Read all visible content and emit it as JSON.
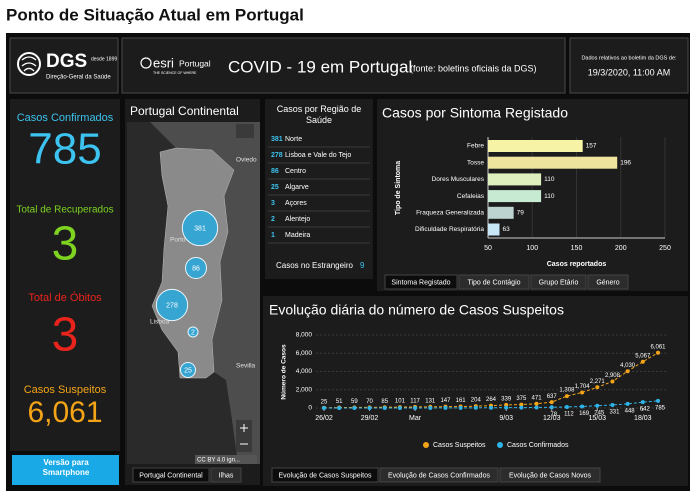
{
  "header": {
    "title": "Ponto de Situação Atual em Portugal"
  },
  "logo": {
    "name": "DGS",
    "since": "desde 1899",
    "subtitle": "Direção-Geral da Saúde"
  },
  "banner": {
    "esri": "esri",
    "esri_region": "Portugal",
    "esri_tagline": "THE SCIENCE OF WHERE",
    "title": "COVID - 19 em Portugal",
    "source": "(fonte: boletins oficiais da DGS)"
  },
  "report_date": {
    "label": "Dados relativos ao boletim da DGS de:",
    "value": "19/3/2020, 11:00 AM"
  },
  "stats": [
    {
      "label": "Casos Confirmados",
      "value": 785,
      "color": "#3cc3ef"
    },
    {
      "label": "Total de Recuperados",
      "value": 3,
      "color": "#7ed321"
    },
    {
      "label": "Total de Óbitos",
      "value": 3,
      "color": "#e8241c"
    },
    {
      "label": "Casos Suspeitos",
      "value": 6061,
      "value_label": "6,061",
      "color": "#f4a417"
    }
  ],
  "smartphone_button": "Versão para Smartphone",
  "map": {
    "title": "Portugal Continental",
    "bubbles": [
      381,
      86,
      278,
      2,
      25
    ],
    "places": [
      "Oviedo",
      "Porto",
      "Lisboa",
      "Sevilla"
    ],
    "attribution": "CC BY 4.0 ign...",
    "tabs": [
      "Portugal Continental",
      "Ilhas"
    ]
  },
  "regions": {
    "title": "Casos por Região de Saúde",
    "rows": [
      {
        "count": 381,
        "name": "Norte"
      },
      {
        "count": 278,
        "name": "Lisboa e Vale do Tejo"
      },
      {
        "count": 86,
        "name": "Centro"
      },
      {
        "count": 25,
        "name": "Algarve"
      },
      {
        "count": 3,
        "name": "Açores"
      },
      {
        "count": 2,
        "name": "Alentejo"
      },
      {
        "count": 1,
        "name": "Madeira"
      }
    ],
    "abroad_label": "Casos no Estrangeiro",
    "abroad_count": 9
  },
  "chart_data": [
    {
      "type": "bar",
      "orientation": "horizontal",
      "title": "Casos por Sintoma Registado",
      "x_label": "Casos reportados",
      "y_label": "Tipo de Sintoma",
      "categories": [
        "Febre",
        "Tosse",
        "Dores Musculares",
        "Cefaleias",
        "Fraqueza Generalizada",
        "Dificuldade Respiratória"
      ],
      "values": [
        157,
        196,
        110,
        110,
        79,
        63
      ],
      "colors": [
        "#f6f3a6",
        "#efe49d",
        "#def0bd",
        "#c6ead2",
        "#bcd3d0",
        "#c7e6f6"
      ],
      "xlim": [
        50,
        250
      ],
      "xticks": [
        50,
        100,
        150,
        200,
        250
      ],
      "tabs": [
        "Sintoma Registado",
        "Tipo de Contágio",
        "Grupo Etário",
        "Género"
      ]
    },
    {
      "type": "line",
      "title": "Evolução diária do número de Casos Suspeitos",
      "y_label": "Número de Casos",
      "categories": [
        "26/02",
        null,
        null,
        "29/02",
        null,
        null,
        "Mar",
        null,
        null,
        null,
        null,
        null,
        "9/03",
        null,
        null,
        "12/03",
        null,
        null,
        "15/03",
        null,
        null,
        "18/03",
        null
      ],
      "series": [
        {
          "name": "Casos Suspeitos",
          "color": "#f4a417",
          "values": [
            25,
            51,
            59,
            70,
            85,
            101,
            117,
            131,
            147,
            161,
            204,
            264,
            339,
            375,
            471,
            637,
            1308,
            1704,
            2271,
            2908,
            4030,
            5067,
            6061
          ],
          "value_labels": [
            "25",
            "51",
            "59",
            "70",
            "85",
            "101",
            "117",
            "131",
            "147",
            "161",
            "204",
            "264",
            "339",
            "375",
            "471",
            "637",
            "1,308",
            "1,704",
            "2,271",
            "2,908",
            "4,030",
            "5,067",
            "6,061"
          ]
        },
        {
          "name": "Casos Confirmados",
          "color": "#2fb4ea",
          "values": [
            0,
            0,
            0,
            0,
            0,
            2,
            4,
            6,
            9,
            13,
            21,
            30,
            39,
            41,
            59,
            78,
            112,
            169,
            245,
            331,
            448,
            642,
            785
          ]
        }
      ],
      "ylim": [
        0,
        8000
      ],
      "yticks": [
        0,
        {
          "value": 2000,
          "label": "2,000"
        },
        {
          "value": 4000,
          "label": "4,000"
        },
        {
          "value": 6000,
          "label": "6,000"
        },
        {
          "value": 8000,
          "label": "8,000"
        }
      ],
      "grid": true,
      "tabs": [
        "Evolução de Casos Suspeitos",
        "Evolução de Casos Confirmados",
        "Evolução de Casos Novos"
      ]
    }
  ]
}
